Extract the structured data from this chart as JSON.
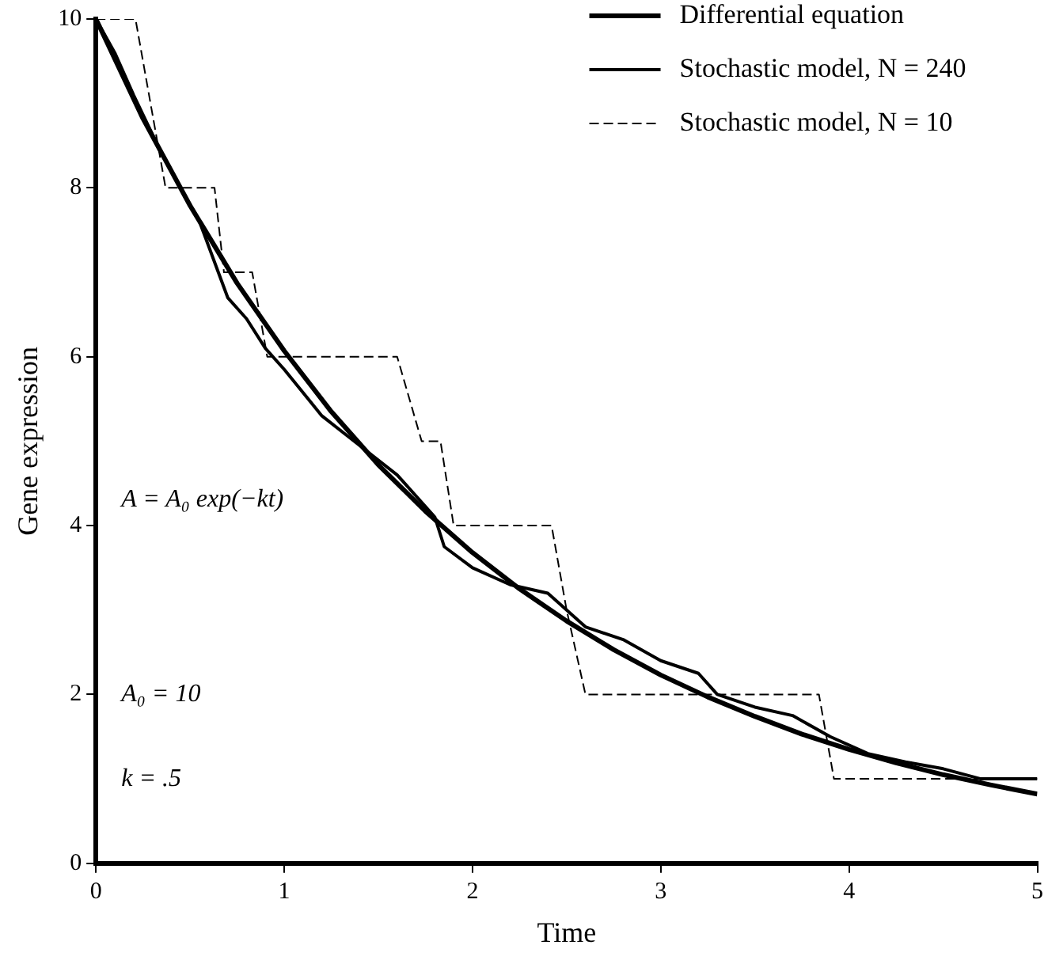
{
  "chart_data": {
    "type": "line",
    "xlabel": "Time",
    "ylabel": "Gene expression",
    "xlim": [
      0,
      5
    ],
    "ylim": [
      0,
      10
    ],
    "xticks": [
      0,
      1,
      2,
      3,
      4,
      5
    ],
    "yticks": [
      0,
      2,
      4,
      6,
      8,
      10
    ],
    "grid": false,
    "legend": "top right",
    "marker": "none",
    "annotations": [
      "A = A₀ exp(−kt)",
      "A₀ = 10",
      "k = .5"
    ],
    "series": [
      {
        "name": "Differential equation",
        "color": "#000000",
        "line_style": "solid",
        "x": [
          0,
          0.25,
          0.5,
          0.75,
          1,
          1.25,
          1.5,
          1.75,
          2,
          2.25,
          2.5,
          2.75,
          3,
          3.25,
          3.5,
          3.75,
          4,
          4.25,
          4.5,
          4.75,
          5
        ],
        "values": [
          10,
          8.82,
          7.79,
          6.87,
          6.07,
          5.35,
          4.72,
          4.17,
          3.68,
          3.25,
          2.87,
          2.53,
          2.23,
          1.97,
          1.74,
          1.53,
          1.35,
          1.19,
          1.05,
          0.93,
          0.82
        ]
      },
      {
        "name": "Stochastic model, N = 240",
        "color": "#000000",
        "line_style": "solid",
        "x": [
          0,
          0.1,
          0.2,
          0.35,
          0.45,
          0.55,
          0.65,
          0.7,
          0.8,
          0.9,
          1,
          1.2,
          1.4,
          1.6,
          1.8,
          1.85,
          2,
          2.2,
          2.4,
          2.5,
          2.6,
          2.8,
          3,
          3.2,
          3.3,
          3.5,
          3.7,
          3.9,
          4.1,
          4.3,
          4.5,
          4.7,
          5
        ],
        "values": [
          10,
          9.6,
          9.1,
          8.4,
          8,
          7.6,
          7,
          6.7,
          6.45,
          6.1,
          5.85,
          5.3,
          4.95,
          4.6,
          4.1,
          3.75,
          3.5,
          3.3,
          3.2,
          3,
          2.8,
          2.65,
          2.4,
          2.25,
          2,
          1.85,
          1.75,
          1.5,
          1.3,
          1.2,
          1.12,
          1,
          1
        ]
      },
      {
        "name": "Stochastic model, N = 10",
        "color": "#000000",
        "line_style": "dashed",
        "x": [
          0,
          0.21,
          0.37,
          0.63,
          0.68,
          0.83,
          0.91,
          1.6,
          1.73,
          1.83,
          1.9,
          2.42,
          2.5,
          2.6,
          3.84,
          3.92,
          5
        ],
        "values": [
          10,
          10,
          8,
          8,
          7,
          7,
          6,
          6,
          5,
          5,
          4,
          4,
          3,
          2,
          2,
          1,
          1
        ]
      }
    ]
  }
}
